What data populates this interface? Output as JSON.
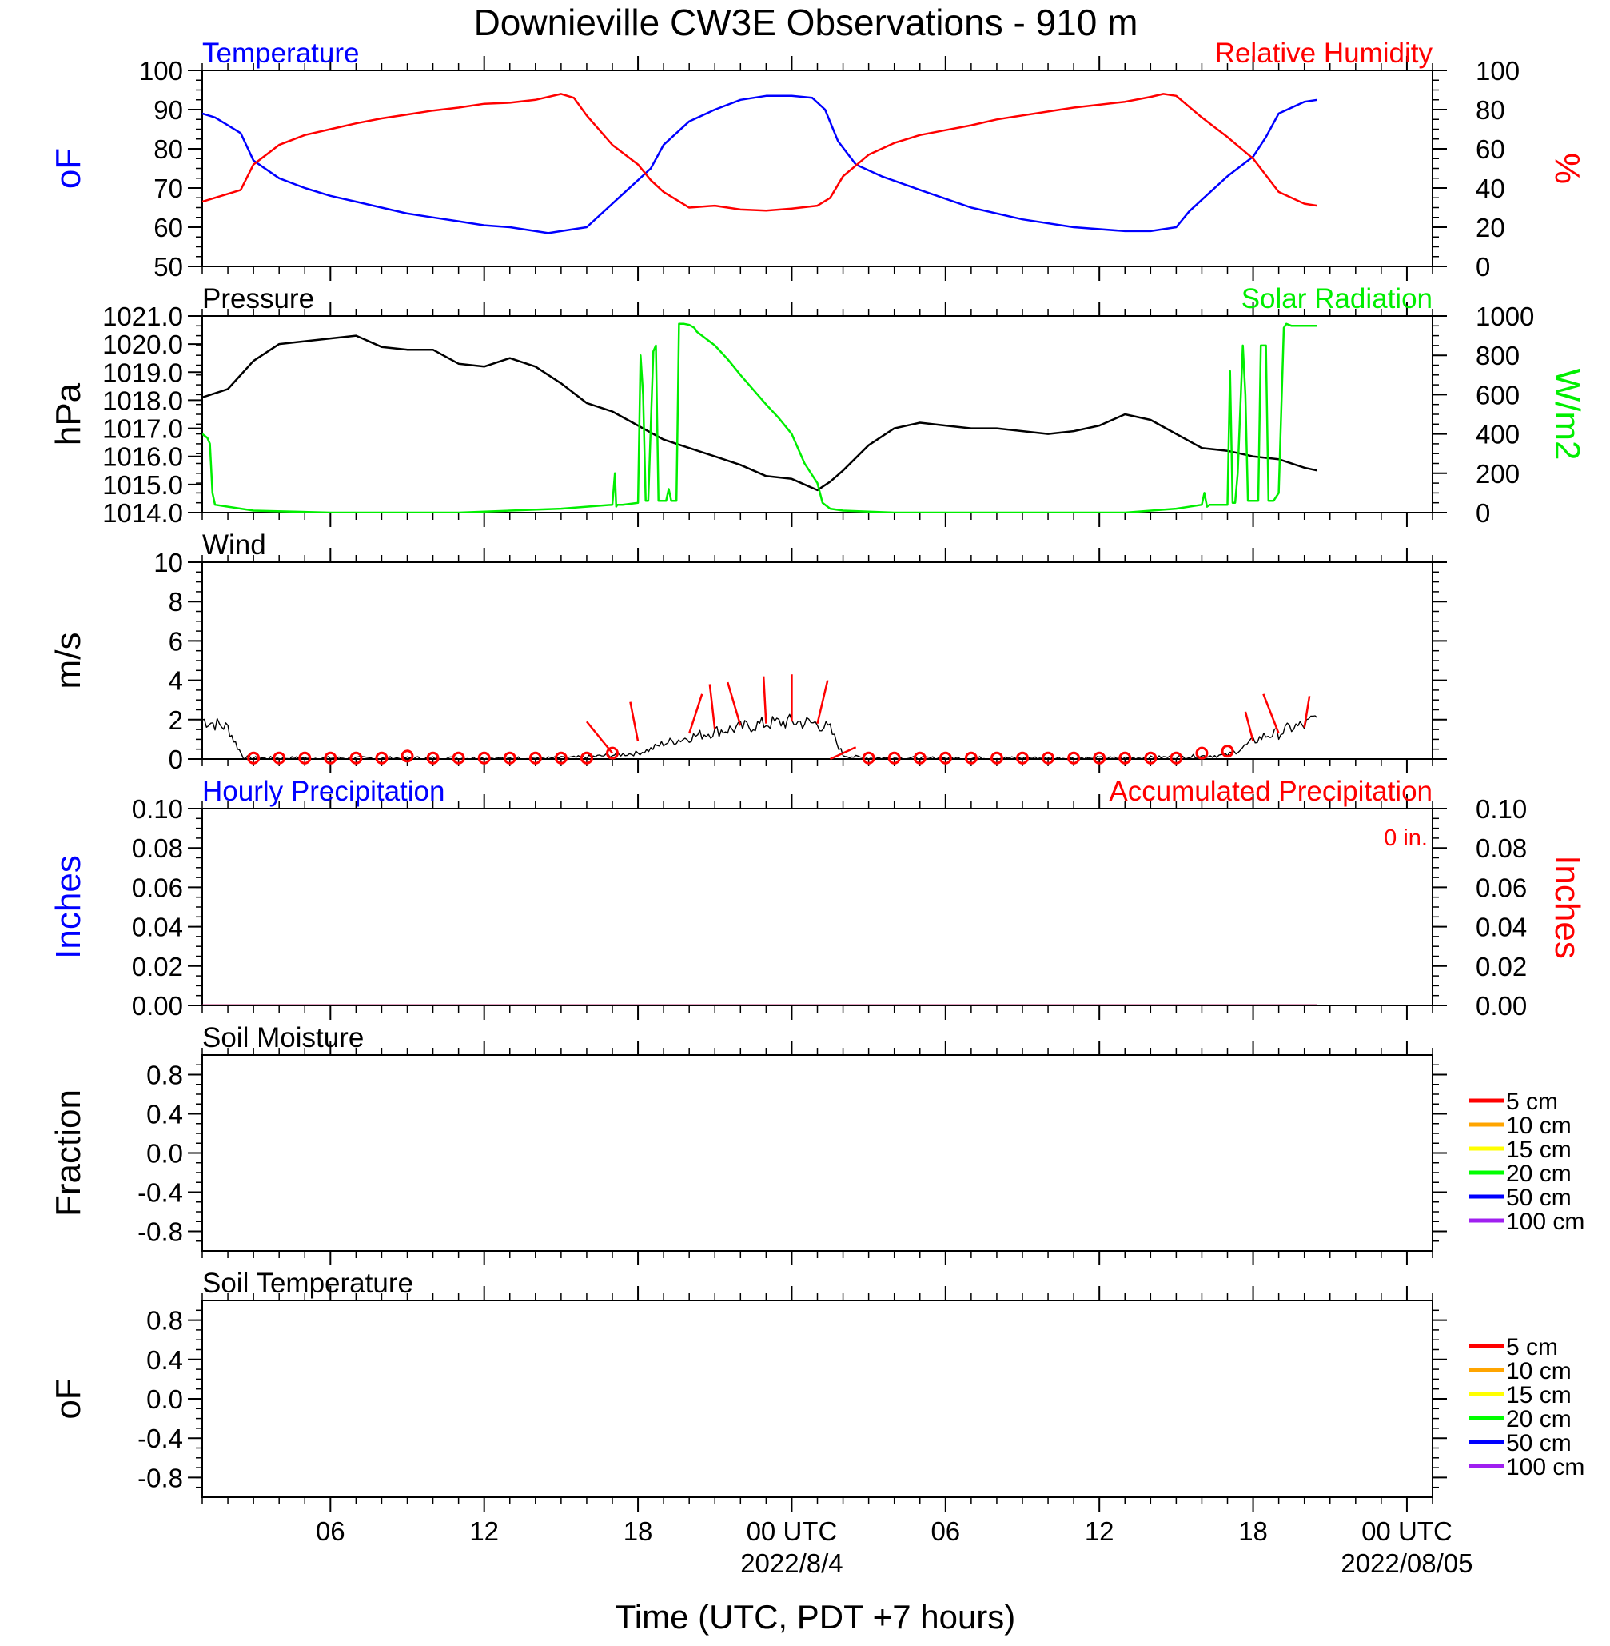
{
  "title": "Downieville CW3E Observations - 910 m",
  "x_axis": {
    "title": "Time (UTC, PDT +7 hours)",
    "range_hours": [
      0,
      48
    ],
    "ticks": [
      {
        "h": 5,
        "label": "06"
      },
      {
        "h": 11,
        "label": "12"
      },
      {
        "h": 17,
        "label": "18"
      },
      {
        "h": 23,
        "label": "00 UTC",
        "date": "2022/8/4"
      },
      {
        "h": 29,
        "label": "06"
      },
      {
        "h": 35,
        "label": "12"
      },
      {
        "h": 41,
        "label": "18"
      },
      {
        "h": 47,
        "label": "00 UTC",
        "date": "2022/08/05"
      }
    ]
  },
  "colors": {
    "temperature": "#0000ff",
    "humidity": "#ff0000",
    "pressure": "#000000",
    "solar": "#00ee00",
    "wind": "#000000",
    "wind_barb": "#ff0000",
    "precip_hourly": "#0000ff",
    "precip_accum": "#ff0000"
  },
  "chart_data": [
    {
      "type": "line",
      "title_left": "Temperature",
      "title_right": "Relative Humidity",
      "ylabel_left": "oF",
      "ylabel_right": "%",
      "ylim_left": [
        50,
        100
      ],
      "ylim_right": [
        0,
        100
      ],
      "yticks_left": [
        "50",
        "60",
        "70",
        "80",
        "90",
        "100"
      ],
      "yticks_right": [
        "0",
        "20",
        "40",
        "60",
        "80",
        "100"
      ],
      "series": [
        {
          "name": "Temperature",
          "axis": "left",
          "x": [
            0,
            0.5,
            1,
            1.5,
            2,
            3,
            4,
            5,
            6,
            7,
            8,
            9,
            10,
            11,
            12,
            13,
            13.5,
            14,
            15,
            16,
            17,
            17.5,
            18,
            19,
            20,
            21,
            22,
            23,
            23.8,
            24.3,
            24.8,
            25.5,
            26.5,
            28,
            30,
            32,
            34,
            36,
            37,
            38,
            38.5,
            39,
            40,
            41,
            41.5,
            42,
            43,
            43.5
          ],
          "y": [
            89,
            88,
            86,
            84,
            77,
            72.5,
            70,
            68,
            66.5,
            65,
            63.5,
            62.5,
            61.5,
            60.5,
            60,
            59,
            58.5,
            59,
            60,
            66,
            72,
            75,
            81,
            87,
            90,
            92.5,
            93.5,
            93.5,
            93,
            90,
            82,
            76,
            73,
            69.5,
            65,
            62,
            60,
            59,
            59,
            60,
            64,
            67,
            73,
            78,
            83,
            89,
            92,
            92.5
          ]
        },
        {
          "name": "Relative Humidity",
          "axis": "right",
          "x": [
            0,
            1,
            1.5,
            2,
            3,
            4,
            5,
            6,
            7,
            8,
            9,
            10,
            11,
            12,
            13,
            14,
            14.5,
            15,
            16,
            17,
            17.5,
            18,
            19,
            20,
            21,
            22,
            23,
            24,
            24.5,
            25,
            26,
            27,
            28,
            29,
            30,
            31,
            32,
            33,
            34,
            35,
            36,
            37,
            37.5,
            38,
            39,
            40,
            41,
            42,
            43,
            43.5
          ],
          "y": [
            33,
            37,
            39,
            52,
            62,
            67,
            70,
            73,
            75.5,
            77.5,
            79.5,
            81,
            83,
            83.5,
            85,
            88,
            86,
            77,
            62,
            52,
            44,
            38,
            30,
            31,
            29,
            28.5,
            29.5,
            31,
            35,
            46,
            57,
            63,
            67,
            69.5,
            72,
            75,
            77,
            79,
            81,
            82.5,
            84,
            86.5,
            88,
            87,
            76,
            66,
            55,
            38,
            32,
            31
          ]
        }
      ]
    },
    {
      "type": "line",
      "title_left": "Pressure",
      "title_right": "Solar Radiation",
      "ylabel_left": "hPa",
      "ylabel_right": "W/m2",
      "ylim_left": [
        1014,
        1021
      ],
      "ylim_right": [
        0,
        1000
      ],
      "yticks_left": [
        "1014.0",
        "1015.0",
        "1016.0",
        "1017.0",
        "1018.0",
        "1019.0",
        "1020.0",
        "1021.0"
      ],
      "yticks_right": [
        "0",
        "200",
        "400",
        "600",
        "800",
        "1000"
      ],
      "series": [
        {
          "name": "Pressure",
          "axis": "left",
          "x": [
            0,
            1,
            2,
            3,
            4,
            5,
            6,
            7,
            8,
            9,
            10,
            11,
            12,
            13,
            14,
            15,
            16,
            17,
            18,
            19,
            20,
            21,
            22,
            23,
            24,
            24.5,
            25,
            26,
            27,
            28,
            29,
            30,
            31,
            32,
            33,
            34,
            35,
            36,
            37,
            38,
            39,
            40,
            41,
            42,
            43,
            43.5
          ],
          "y": [
            1018.1,
            1018.4,
            1019.4,
            1020.0,
            1020.1,
            1020.2,
            1020.3,
            1019.9,
            1019.8,
            1019.8,
            1019.3,
            1019.2,
            1019.5,
            1019.2,
            1018.6,
            1017.9,
            1017.6,
            1017.1,
            1016.6,
            1016.3,
            1016.0,
            1015.7,
            1015.3,
            1015.2,
            1014.8,
            1015.1,
            1015.5,
            1016.4,
            1017.0,
            1017.2,
            1017.1,
            1017.0,
            1017.0,
            1016.9,
            1016.8,
            1016.9,
            1017.1,
            1017.5,
            1017.3,
            1016.8,
            1016.3,
            1016.2,
            1016.0,
            1015.9,
            1015.6,
            1015.5
          ]
        },
        {
          "name": "Solar Radiation",
          "axis": "right",
          "x": [
            0,
            0.2,
            0.3,
            0.4,
            0.5,
            1,
            2,
            5,
            10,
            12,
            14,
            15,
            16,
            16.1,
            16.15,
            16.2,
            16.35,
            16.4,
            17,
            17.1,
            17.2,
            17.3,
            17.4,
            17.6,
            17.7,
            17.8,
            18,
            18.1,
            18.2,
            18.3,
            18.5,
            18.6,
            18.8,
            19,
            19.2,
            19.3,
            19.5,
            20,
            20.5,
            21,
            22,
            22.5,
            23,
            23.5,
            24,
            24.2,
            24.5,
            25,
            27,
            30,
            34,
            36,
            38,
            39,
            39.1,
            39.2,
            39.3,
            39.4,
            40,
            40.1,
            40.2,
            40.3,
            40.4,
            40.6,
            40.7,
            40.8,
            41,
            41.1,
            41.2,
            41.3,
            41.5,
            41.6,
            41.8,
            42,
            42.2,
            42.3,
            42.5,
            43,
            43.5
          ],
          "y": [
            400,
            380,
            350,
            100,
            40,
            30,
            10,
            0,
            0,
            10,
            20,
            30,
            40,
            200,
            30,
            40,
            40,
            40,
            50,
            800,
            600,
            60,
            60,
            820,
            850,
            60,
            60,
            60,
            120,
            60,
            60,
            960,
            960,
            955,
            940,
            920,
            900,
            850,
            780,
            700,
            550,
            480,
            400,
            250,
            150,
            50,
            20,
            10,
            0,
            0,
            0,
            0,
            20,
            40,
            100,
            30,
            40,
            40,
            40,
            720,
            50,
            50,
            200,
            850,
            600,
            60,
            60,
            60,
            60,
            850,
            850,
            60,
            60,
            100,
            940,
            960,
            950,
            950,
            950
          ]
        }
      ]
    },
    {
      "type": "line",
      "title_left": "Wind",
      "ylabel_left": "m/s",
      "ylim_left": [
        0,
        10
      ],
      "yticks_left": [
        "0",
        "2",
        "4",
        "6",
        "8",
        "10"
      ],
      "series": [
        {
          "name": "Wind",
          "axis": "left",
          "x": [
            0,
            0.5,
            1,
            1.3,
            1.6,
            2,
            3,
            5,
            8,
            10,
            12,
            14,
            15,
            16,
            17,
            17.5,
            18,
            19,
            20,
            21,
            22,
            23,
            24,
            24.5,
            25,
            25.5,
            26,
            28,
            32,
            36,
            38,
            40,
            40.5,
            41,
            41.5,
            42,
            42.5,
            43,
            43.5
          ],
          "y": [
            2.0,
            1.8,
            1.6,
            0.8,
            0.1,
            0.05,
            0.05,
            0.05,
            0.05,
            0.05,
            0.05,
            0.05,
            0.1,
            0.2,
            0.3,
            0.5,
            0.8,
            1.1,
            1.4,
            1.6,
            1.8,
            1.9,
            1.8,
            1.5,
            0.2,
            0.1,
            0.05,
            0.05,
            0.05,
            0.05,
            0.1,
            0.2,
            0.5,
            0.9,
            1.2,
            1.3,
            1.6,
            1.7,
            2.1
          ]
        }
      ],
      "wind_markers_hours": [
        2,
        3,
        4,
        5,
        6,
        7,
        8,
        9,
        10,
        11,
        12,
        13,
        14,
        15,
        16,
        26,
        27,
        28,
        29,
        30,
        31,
        32,
        33,
        34,
        35,
        36,
        37,
        38,
        39,
        40
      ],
      "wind_markers_y": [
        0.05,
        0.05,
        0.05,
        0.05,
        0.05,
        0.05,
        0.15,
        0.05,
        0.05,
        0.05,
        0.05,
        0.05,
        0.05,
        0.05,
        0.3,
        0.05,
        0.05,
        0.05,
        0.05,
        0.05,
        0.05,
        0.05,
        0.05,
        0.05,
        0.05,
        0.05,
        0.05,
        0.05,
        0.3,
        0.4
      ],
      "wind_barbs": [
        {
          "h": 16,
          "y": 0.3,
          "dx": -1.0,
          "dy": 1.6
        },
        {
          "h": 17,
          "y": 0.9,
          "dx": -0.3,
          "dy": 2.0
        },
        {
          "h": 19,
          "y": 1.3,
          "dx": 0.5,
          "dy": 2.0
        },
        {
          "h": 20,
          "y": 1.5,
          "dx": -0.2,
          "dy": 2.3
        },
        {
          "h": 21,
          "y": 1.7,
          "dx": -0.5,
          "dy": 2.2
        },
        {
          "h": 22,
          "y": 1.8,
          "dx": -0.1,
          "dy": 2.4
        },
        {
          "h": 23,
          "y": 1.9,
          "dx": 0.0,
          "dy": 2.4
        },
        {
          "h": 24,
          "y": 1.8,
          "dx": 0.4,
          "dy": 2.2
        },
        {
          "h": 24.5,
          "y": 0.0,
          "dx": 1.0,
          "dy": 0.6
        },
        {
          "h": 41,
          "y": 0.9,
          "dx": -0.3,
          "dy": 1.5
        },
        {
          "h": 42,
          "y": 1.3,
          "dx": -0.6,
          "dy": 2.0
        },
        {
          "h": 43,
          "y": 1.6,
          "dx": 0.2,
          "dy": 1.6
        }
      ]
    },
    {
      "type": "line",
      "title_left": "Hourly Precipitation",
      "title_right": "Accumulated Precipitation",
      "annotation": "0 in.",
      "ylabel_left": "Inches",
      "ylabel_right": "Inches",
      "ylim_left": [
        0,
        0.1
      ],
      "ylim_right": [
        0,
        0.1
      ],
      "yticks_left": [
        "0.00",
        "0.02",
        "0.04",
        "0.06",
        "0.08",
        "0.10"
      ],
      "yticks_right": [
        "0.00",
        "0.02",
        "0.04",
        "0.06",
        "0.08",
        "0.10"
      ],
      "series": [
        {
          "name": "Hourly Precipitation",
          "axis": "left",
          "x": [
            0,
            43.5
          ],
          "y": [
            0,
            0
          ]
        },
        {
          "name": "Accumulated Precipitation",
          "axis": "right",
          "x": [
            0,
            43.5
          ],
          "y": [
            0,
            0
          ]
        }
      ]
    },
    {
      "type": "line",
      "title_left": "Soil Moisture",
      "ylabel_left": "Fraction",
      "ylim_left": [
        -1,
        1
      ],
      "yticks_left": [
        "-0.8",
        "-0.4",
        "0.0",
        "0.4",
        "0.8"
      ],
      "legend": [
        {
          "label": "5 cm",
          "color": "#ff0000"
        },
        {
          "label": "10 cm",
          "color": "#ffa500"
        },
        {
          "label": "15 cm",
          "color": "#ffff00"
        },
        {
          "label": "20 cm",
          "color": "#00ff00"
        },
        {
          "label": "50 cm",
          "color": "#0000ff"
        },
        {
          "label": "100 cm",
          "color": "#a020f0"
        }
      ]
    },
    {
      "type": "line",
      "title_left": "Soil Temperature",
      "ylabel_left": "oF",
      "ylim_left": [
        -1,
        1
      ],
      "yticks_left": [
        "-0.8",
        "-0.4",
        "0.0",
        "0.4",
        "0.8"
      ],
      "legend": [
        {
          "label": "5 cm",
          "color": "#ff0000"
        },
        {
          "label": "10 cm",
          "color": "#ffa500"
        },
        {
          "label": "15 cm",
          "color": "#ffff00"
        },
        {
          "label": "20 cm",
          "color": "#00ff00"
        },
        {
          "label": "50 cm",
          "color": "#0000ff"
        },
        {
          "label": "100 cm",
          "color": "#a020f0"
        }
      ]
    }
  ]
}
